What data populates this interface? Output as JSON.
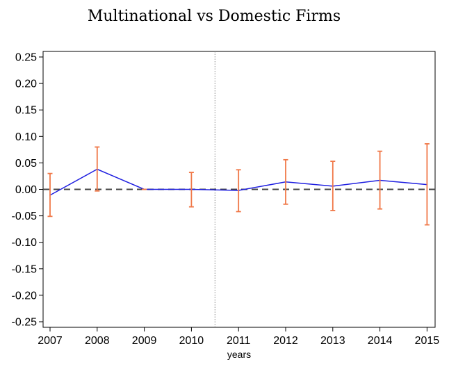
{
  "chart_data": {
    "type": "line",
    "title": "Multinational vs Domestic Firms",
    "xlabel": "years",
    "ylabel": "",
    "categories": [
      "2007",
      "2008",
      "2009",
      "2010",
      "2011",
      "2012",
      "2013",
      "2014",
      "2015"
    ],
    "ylim": [
      -0.25,
      0.25
    ],
    "y_ticks": [
      "0.25",
      "0.20",
      "0.15",
      "0.10",
      "0.05",
      "0.00",
      "-0.05",
      "-0.10",
      "-0.15",
      "-0.20",
      "-0.25"
    ],
    "series": [
      {
        "values": [
          -0.011,
          0.038,
          0.0,
          0.0,
          -0.002,
          0.014,
          0.006,
          0.017,
          0.009
        ],
        "ci_lower": [
          -0.051,
          -0.003,
          0.0,
          -0.033,
          -0.042,
          -0.028,
          -0.04,
          -0.037,
          -0.067
        ],
        "ci_upper": [
          0.03,
          0.08,
          0.0,
          0.032,
          0.037,
          0.056,
          0.053,
          0.072,
          0.086
        ]
      }
    ],
    "reference_line_y": 0.0,
    "vertical_marker_between": [
      "2010",
      "2011"
    ],
    "grid": false,
    "legend": "none",
    "colors": {
      "line": "#1f1fe0",
      "error_bar": "#f07848",
      "zero_line": "#444444",
      "vertical_marker": "#888888",
      "axes": "#000000"
    }
  }
}
